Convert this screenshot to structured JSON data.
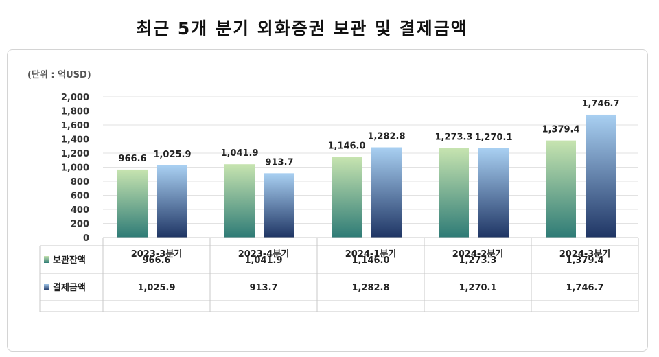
{
  "chart_data": {
    "type": "bar",
    "title": "최근 5개 분기 외화증권 보관 및 결제금액",
    "unit_label": "(단위 : 억USD)",
    "categories": [
      "2023-3분기",
      "2023-4분기",
      "2024-1분기",
      "2024-2분기",
      "2024-3분기"
    ],
    "series": [
      {
        "name": "보관잔액",
        "values": [
          966.6,
          1041.9,
          1146.0,
          1273.3,
          1379.4
        ],
        "labels": [
          "966.6",
          "1,041.9",
          "1,146.0",
          "1,273.3",
          "1,379.4"
        ],
        "color_top": "#c7e4b0",
        "color_bottom": "#2e7b76"
      },
      {
        "name": "결제금액",
        "values": [
          1025.9,
          913.7,
          1282.8,
          1270.1,
          1746.7
        ],
        "labels": [
          "1,025.9",
          "913.7",
          "1,282.8",
          "1,270.1",
          "1,746.7"
        ],
        "color_top": "#a9d0f2",
        "color_bottom": "#1f3564"
      }
    ],
    "ylim": [
      0,
      2000
    ],
    "yticks": [
      "0",
      "200",
      "400",
      "600",
      "800",
      "1,000",
      "1,200",
      "1,400",
      "1,600",
      "1,800",
      "2,000"
    ],
    "grid": true,
    "legend": "data-table"
  }
}
